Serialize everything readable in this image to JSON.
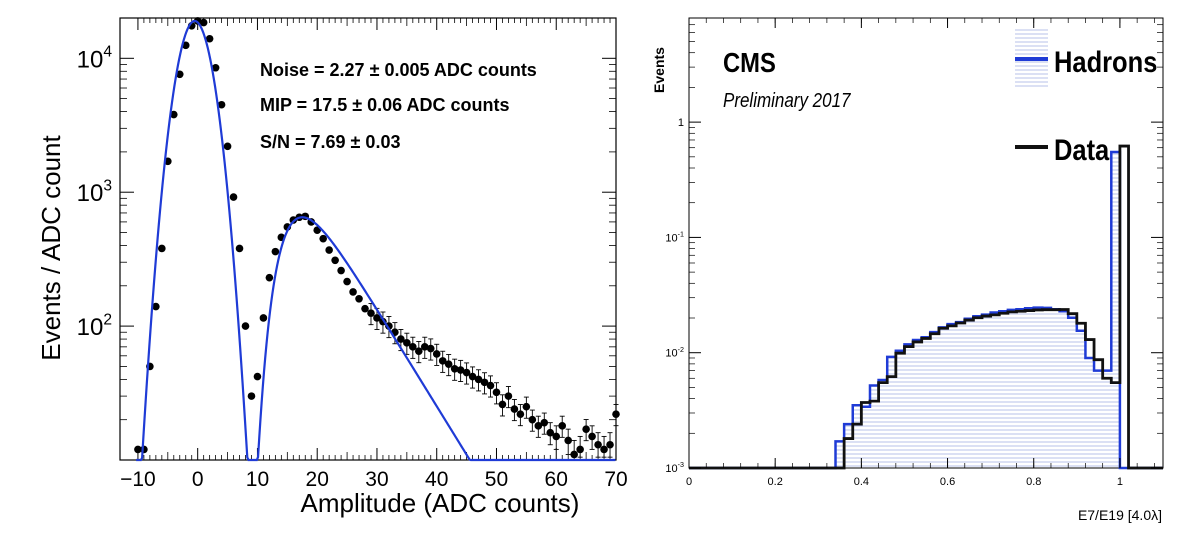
{
  "chart_data": [
    {
      "type": "scatter",
      "xlabel": "Amplitude (ADC counts)",
      "ylabel": "Events / ADC count",
      "xlim": [
        -13,
        70
      ],
      "ylim": [
        10,
        20000
      ],
      "log_y": true,
      "x_ticks": [
        -10,
        0,
        10,
        20,
        30,
        40,
        50,
        60,
        70
      ],
      "x_tick_labels": [
        "−10",
        "0",
        "10",
        "20",
        "30",
        "40",
        "50",
        "60",
        "70"
      ],
      "y_ticks": [
        100,
        1000,
        10000
      ],
      "y_tick_labels": [
        {
          "base": "10",
          "exp": "2"
        },
        {
          "base": "10",
          "exp": "3"
        },
        {
          "base": "10",
          "exp": "4"
        }
      ],
      "grid": false,
      "annotations": [
        "Noise = 2.27  ± 0.005 ADC counts",
        "MIP = 17.5  ± 0.06 ADC counts",
        "S/N = 7.69  ± 0.03"
      ],
      "series": [
        {
          "values": [
            [
              -10,
              12
            ],
            [
              -9,
              12
            ],
            [
              -8,
              50
            ],
            [
              -7,
              140
            ],
            [
              -6,
              380
            ],
            [
              -5,
              1700
            ],
            [
              -4,
              3800
            ],
            [
              -3,
              7600
            ],
            [
              -2,
              12500
            ],
            [
              -1,
              17500
            ],
            [
              0,
              19000
            ],
            [
              1,
              18500
            ],
            [
              2,
              14000
            ],
            [
              3,
              8500
            ],
            [
              4,
              4500
            ],
            [
              5,
              2200
            ],
            [
              6,
              920
            ],
            [
              7,
              380
            ],
            [
              8,
              100
            ],
            [
              9,
              30
            ],
            [
              10,
              42
            ],
            [
              11,
              115
            ],
            [
              12,
              230
            ],
            [
              13,
              360
            ],
            [
              14,
              460
            ],
            [
              15,
              550
            ],
            [
              16,
              620
            ],
            [
              17,
              650
            ],
            [
              18,
              660
            ],
            [
              19,
              600
            ],
            [
              20,
              520
            ],
            [
              21,
              450
            ],
            [
              22,
              370
            ],
            [
              23,
              310
            ],
            [
              24,
              260
            ],
            [
              25,
              215
            ],
            [
              26,
              180
            ],
            [
              27,
              160
            ],
            [
              28,
              135
            ],
            [
              29,
              125
            ],
            [
              30,
              115
            ],
            [
              31,
              108
            ],
            [
              32,
              100
            ],
            [
              33,
              90
            ],
            [
              34,
              80
            ],
            [
              35,
              75
            ],
            [
              36,
              70
            ],
            [
              37,
              65
            ],
            [
              38,
              70
            ],
            [
              39,
              68
            ],
            [
              40,
              62
            ],
            [
              41,
              55
            ],
            [
              42,
              52
            ],
            [
              43,
              48
            ],
            [
              44,
              47
            ],
            [
              45,
              45
            ],
            [
              46,
              42
            ],
            [
              47,
              40
            ],
            [
              48,
              38
            ],
            [
              49,
              36
            ],
            [
              50,
              32
            ],
            [
              51,
              26
            ],
            [
              52,
              30
            ],
            [
              53,
              24
            ],
            [
              54,
              22
            ],
            [
              55,
              25
            ],
            [
              56,
              20
            ],
            [
              57,
              18
            ],
            [
              58,
              19
            ],
            [
              59,
              16
            ],
            [
              60,
              15
            ],
            [
              61,
              18
            ],
            [
              62,
              14
            ],
            [
              63,
              11
            ],
            [
              64,
              12
            ],
            [
              65,
              17
            ],
            [
              66,
              15
            ],
            [
              67,
              13
            ],
            [
              68,
              12
            ],
            [
              69,
              13
            ],
            [
              70,
              22
            ]
          ]
        },
        {
          "kind": "fit_curve",
          "color": "#1f3bd6",
          "model": {
            "gauss_amp": 19000,
            "gauss_mean": -0.5,
            "gauss_sigma": 2.27,
            "landau_amp": 650,
            "mip": 17.5
          }
        }
      ]
    },
    {
      "type": "histogram",
      "xlabel": "E7/E19 [4.0λ]",
      "ylabel": "Events",
      "xlim": [
        0,
        1.1
      ],
      "ylim": [
        0.001,
        8
      ],
      "log_y": true,
      "x_ticks": [
        0,
        0.2,
        0.4,
        0.6,
        0.8,
        1
      ],
      "x_tick_labels": [
        "0",
        "0.2",
        "0.4",
        "0.6",
        "0.8",
        "1"
      ],
      "y_ticks": [
        0.001,
        0.01,
        0.1,
        1
      ],
      "y_tick_labels": [
        {
          "base": "10",
          "exp": "-3"
        },
        {
          "base": "10",
          "exp": "-2"
        },
        {
          "base": "10",
          "exp": "-1"
        },
        {
          "base": "1",
          "exp": ""
        }
      ],
      "grid": false,
      "legend_position": "top-right",
      "text": {
        "experiment": "CMS",
        "status": "Preliminary 2017"
      },
      "bin_width": 0.02,
      "series": [
        {
          "name": "Hadrons",
          "color": "#1f3bd6",
          "fill": "hatched",
          "values": [
            0,
            0,
            0,
            0,
            0,
            0,
            0,
            0,
            0,
            0,
            0,
            0,
            0,
            0,
            0,
            0,
            0,
            0.0017,
            0.0024,
            0.0035,
            0.0034,
            0.0052,
            0.0058,
            0.0092,
            0.0104,
            0.0118,
            0.0129,
            0.0136,
            0.0151,
            0.0166,
            0.0177,
            0.0184,
            0.0197,
            0.0207,
            0.0214,
            0.0223,
            0.0229,
            0.0235,
            0.0238,
            0.0243,
            0.0246,
            0.0245,
            0.0238,
            0.0229,
            0.0201,
            0.0155,
            0.009,
            0.007,
            0.007,
            0.55,
            0,
            0,
            0,
            0,
            0
          ]
        },
        {
          "name": "Data",
          "color": "#111111",
          "values": [
            0,
            0,
            0,
            0,
            0,
            0,
            0,
            0,
            0,
            0,
            0,
            0,
            0,
            0,
            0,
            0,
            0,
            0,
            0.0018,
            0.0024,
            0.0037,
            0.0038,
            0.0055,
            0.0062,
            0.0099,
            0.0113,
            0.0124,
            0.0133,
            0.0146,
            0.0163,
            0.0171,
            0.0181,
            0.0192,
            0.0201,
            0.0208,
            0.0213,
            0.022,
            0.0226,
            0.0229,
            0.0232,
            0.0235,
            0.0236,
            0.0236,
            0.0237,
            0.0218,
            0.018,
            0.013,
            0.0087,
            0.006,
            0.0055,
            0.62,
            0,
            0,
            0,
            0
          ]
        }
      ]
    }
  ]
}
